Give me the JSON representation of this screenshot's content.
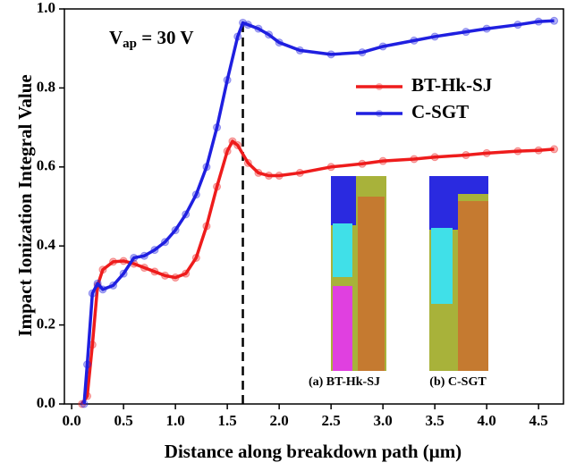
{
  "chart_data": {
    "type": "line",
    "x_label": "Distance along breakdown path (μm)",
    "y_label": "Impact Ionization Integral Value",
    "annotation": [
      "V",
      "ap",
      " = 30 V"
    ],
    "vline_x": 1.65,
    "inset_captions": [
      "(a) BT-Hk-SJ",
      "(b) C-SGT"
    ],
    "xlim": [
      -0.07,
      4.74
    ],
    "ylim": [
      0,
      1
    ],
    "xticks": [
      {
        "value": 0,
        "label": "0.0"
      },
      0.5,
      {
        "value": 1,
        "label": "1.0"
      },
      1.5,
      {
        "value": 2,
        "label": "2.0"
      },
      2.5,
      {
        "value": 3,
        "label": "3.0"
      },
      3.5,
      {
        "value": 4,
        "label": "4.0"
      },
      4.5
    ],
    "yticks": [
      {
        "value": 0,
        "label": "0.0"
      },
      0.2,
      0.4,
      0.6,
      0.8,
      {
        "value": 1,
        "label": "1.0"
      }
    ],
    "legend": "upper right",
    "series": [
      {
        "name": "BT-Hk-SJ",
        "color": "#ee1c1c",
        "x": [
          0.1,
          0.15,
          0.2,
          0.25,
          0.3,
          0.4,
          0.5,
          0.6,
          0.7,
          0.8,
          0.9,
          1.0,
          1.1,
          1.2,
          1.3,
          1.4,
          1.5,
          1.55,
          1.6,
          1.7,
          1.8,
          1.9,
          2.0,
          2.2,
          2.5,
          2.8,
          3.0,
          3.3,
          3.5,
          3.8,
          4.0,
          4.3,
          4.5,
          4.65
        ],
        "values": [
          0,
          0.02,
          0.15,
          0.3,
          0.34,
          0.36,
          0.362,
          0.355,
          0.345,
          0.335,
          0.325,
          0.32,
          0.33,
          0.37,
          0.45,
          0.55,
          0.64,
          0.665,
          0.655,
          0.61,
          0.585,
          0.578,
          0.578,
          0.585,
          0.6,
          0.608,
          0.615,
          0.62,
          0.625,
          0.63,
          0.635,
          0.64,
          0.642,
          0.645
        ]
      },
      {
        "name": "C-SGT",
        "color": "#1f1fe0",
        "x": [
          0.12,
          0.15,
          0.2,
          0.25,
          0.3,
          0.4,
          0.5,
          0.6,
          0.7,
          0.8,
          0.9,
          1.0,
          1.1,
          1.2,
          1.3,
          1.4,
          1.5,
          1.6,
          1.65,
          1.7,
          1.8,
          1.9,
          2.0,
          2.2,
          2.5,
          2.8,
          3.0,
          3.3,
          3.5,
          3.8,
          4.0,
          4.3,
          4.5,
          4.65
        ],
        "values": [
          0,
          0.1,
          0.28,
          0.305,
          0.29,
          0.3,
          0.33,
          0.37,
          0.375,
          0.39,
          0.41,
          0.44,
          0.48,
          0.53,
          0.6,
          0.7,
          0.82,
          0.93,
          0.965,
          0.96,
          0.95,
          0.935,
          0.915,
          0.895,
          0.885,
          0.89,
          0.905,
          0.92,
          0.93,
          0.942,
          0.95,
          0.96,
          0.968,
          0.97
        ]
      }
    ]
  }
}
